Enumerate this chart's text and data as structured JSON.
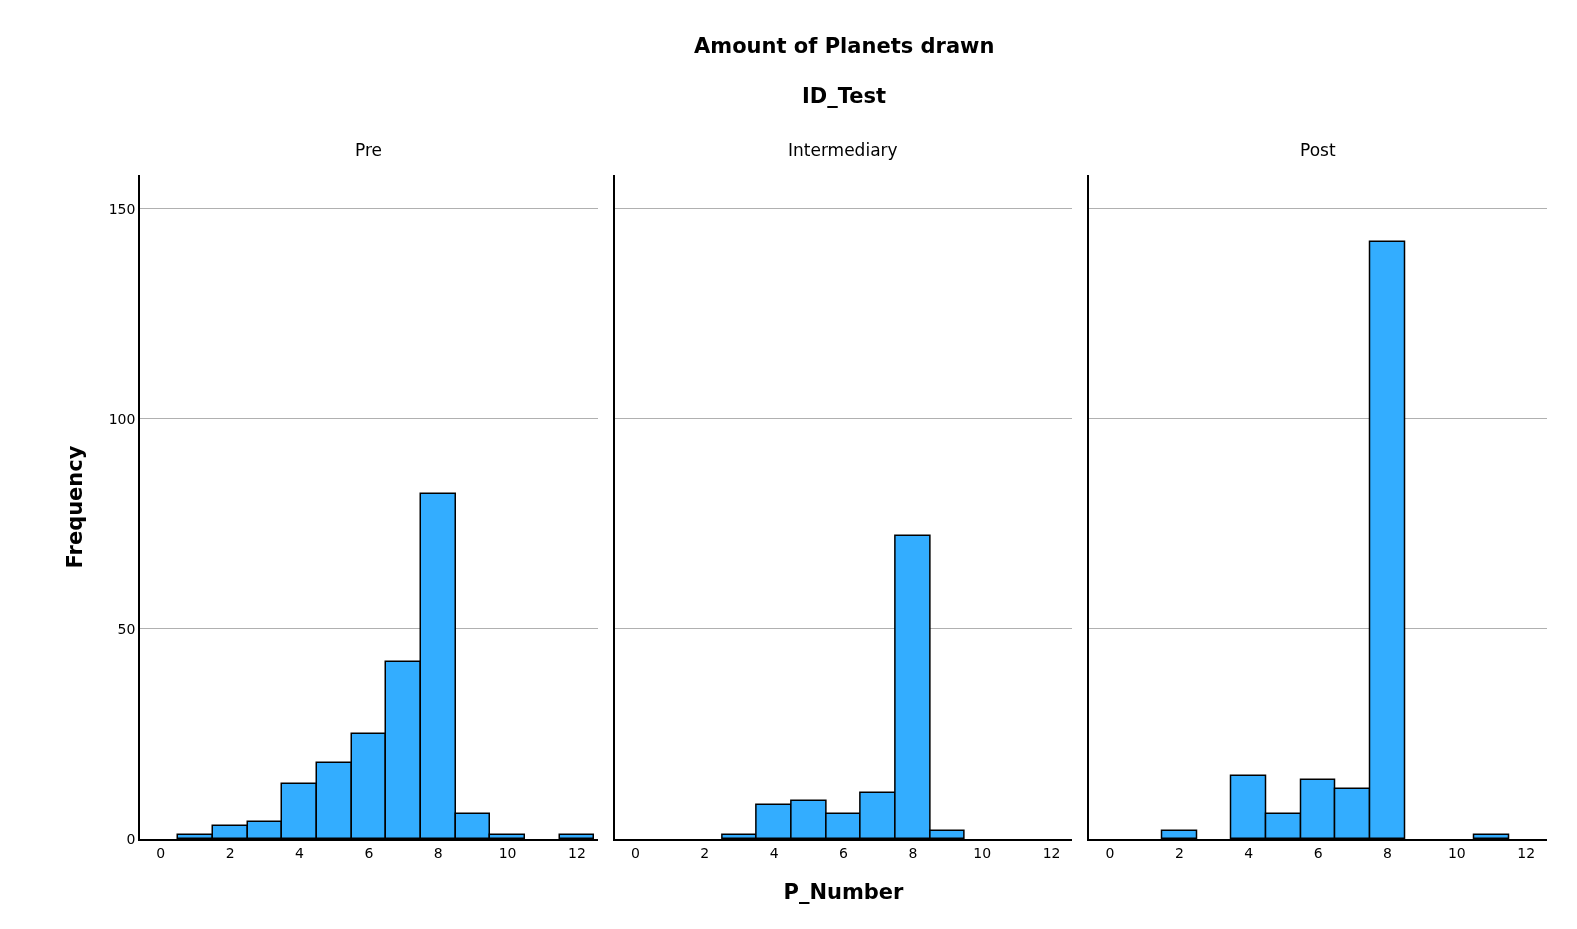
{
  "chart_data": [
    {
      "type": "histogram",
      "title": "Pre",
      "annotations": [
        "Amount of Planets drawn",
        "ID_Test"
      ],
      "ylabel": "Frequency",
      "bins": [
        0.5,
        1.5,
        2.5,
        3.5,
        4.5,
        5.5,
        6.5,
        7.5,
        8.5,
        9.5,
        10.5,
        11.5,
        12.5
      ],
      "values": [
        1,
        3,
        4,
        13,
        18,
        25,
        42,
        82,
        6,
        1,
        0,
        1
      ],
      "color": "#33adff",
      "xlim": [
        -0.6,
        12.6
      ],
      "xticks": [
        0,
        2,
        4,
        6,
        8,
        10,
        12
      ],
      "ylim": [
        0,
        158
      ],
      "yticks": [
        0,
        50,
        100,
        150
      ],
      "grid": "y"
    },
    {
      "type": "histogram",
      "title": "Intermediary",
      "xlabel": "P_Number",
      "bins": [
        0.5,
        1.5,
        2.5,
        3.5,
        4.5,
        5.5,
        6.5,
        7.5,
        8.5,
        9.5,
        10.5,
        11.5,
        12.5
      ],
      "values": [
        0,
        0,
        1,
        8,
        9,
        6,
        11,
        72,
        2,
        0,
        0,
        0
      ],
      "color": "#33adff",
      "xlim": [
        -0.6,
        12.6
      ],
      "xticks": [
        0,
        2,
        4,
        6,
        8,
        10,
        12
      ],
      "ylim": [
        0,
        158
      ],
      "yticks": [
        0,
        50,
        100,
        150
      ],
      "grid": "y",
      "tick_labels": "x"
    },
    {
      "type": "histogram",
      "title": "Post",
      "bins": [
        0.5,
        1.5,
        2.5,
        3.5,
        4.5,
        5.5,
        6.5,
        7.5,
        8.5,
        9.5,
        10.5,
        11.5,
        12.5
      ],
      "values": [
        0,
        2,
        0,
        15,
        6,
        14,
        12,
        142,
        0,
        0,
        1,
        0
      ],
      "color": "#33adff",
      "xlim": [
        -0.6,
        12.6
      ],
      "xticks": [
        0,
        2,
        4,
        6,
        8,
        10,
        12
      ],
      "ylim": [
        0,
        158
      ],
      "yticks": [
        0,
        50,
        100,
        150
      ],
      "grid": "y",
      "tick_labels": "x"
    }
  ]
}
